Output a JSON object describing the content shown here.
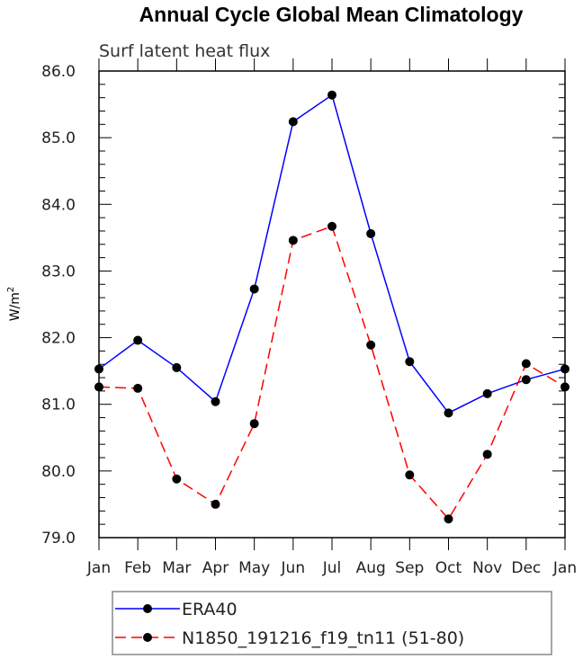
{
  "chart_data": {
    "type": "line",
    "title": "Annual Cycle Global Mean Climatology",
    "subtitle": "Surf latent heat flux",
    "xlabel": "",
    "ylabel": "W/m",
    "ylabel_superscript": "2",
    "ylim": [
      79.0,
      86.0
    ],
    "yticks": [
      "79.0",
      "80.0",
      "81.0",
      "82.0",
      "83.0",
      "84.0",
      "85.0",
      "86.0"
    ],
    "categories": [
      "Jan",
      "Feb",
      "Mar",
      "Apr",
      "May",
      "Jun",
      "Jul",
      "Aug",
      "Sep",
      "Oct",
      "Nov",
      "Dec",
      "Jan"
    ],
    "grid": false,
    "legend_position": "bottom",
    "series": [
      {
        "name": "ERA40",
        "color": "#0000ff",
        "dash": "solid",
        "values": [
          81.53,
          81.96,
          81.55,
          81.04,
          82.73,
          85.24,
          85.64,
          83.56,
          81.64,
          80.87,
          81.16,
          81.37,
          81.53
        ]
      },
      {
        "name": "N1850_191216_f19_tn11 (51-80)",
        "color": "#ff0000",
        "dash": "dashed",
        "values": [
          81.26,
          81.24,
          79.88,
          79.5,
          80.71,
          83.46,
          83.67,
          81.89,
          79.94,
          79.28,
          80.25,
          81.61,
          81.26
        ]
      }
    ]
  }
}
